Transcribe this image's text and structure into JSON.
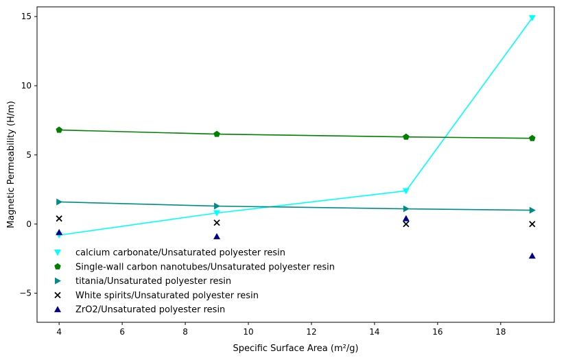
{
  "chart_data": {
    "type": "scatter",
    "title": "",
    "xlabel": "Specific Surface Area (m²/g)",
    "ylabel": "Magnetic Permeability (H/m)",
    "xlim": [
      3.3,
      19.7
    ],
    "ylim": [
      -7.1,
      15.7
    ],
    "xticks": [
      4,
      6,
      8,
      10,
      12,
      14,
      16,
      18
    ],
    "yticks": [
      -5,
      0,
      5,
      10,
      15
    ],
    "grid": false,
    "legend_position": "lower-left",
    "series": [
      {
        "name": "calcium carbonate/Unsaturated polyester resin",
        "marker": "triangle-down",
        "color": "#00ffff",
        "line": true,
        "x": [
          4,
          9,
          15,
          19
        ],
        "y": [
          -0.8,
          0.8,
          2.4,
          14.9
        ]
      },
      {
        "name": "Single-wall carbon nanotubes/Unsaturated polyester resin",
        "marker": "pentagon",
        "color": "#008000",
        "line": true,
        "x": [
          4,
          9,
          15,
          19
        ],
        "y": [
          6.8,
          6.5,
          6.3,
          6.2
        ]
      },
      {
        "name": "titania/Unsaturated polyester resin",
        "marker": "triangle-right",
        "color": "#008b8b",
        "line": true,
        "x": [
          4,
          9,
          15,
          19
        ],
        "y": [
          1.6,
          1.3,
          1.1,
          1.0
        ]
      },
      {
        "name": "White spirits/Unsaturated polyester resin",
        "marker": "x",
        "color": "#000000",
        "line": false,
        "x": [
          4,
          9,
          15,
          19
        ],
        "y": [
          0.4,
          0.1,
          0.0,
          0.0
        ]
      },
      {
        "name": "ZrO2/Unsaturated polyester resin",
        "marker": "triangle-up",
        "color": "#00008b",
        "line": false,
        "x": [
          4,
          9,
          15,
          19
        ],
        "y": [
          -0.6,
          -0.9,
          0.4,
          -2.3
        ]
      }
    ]
  }
}
